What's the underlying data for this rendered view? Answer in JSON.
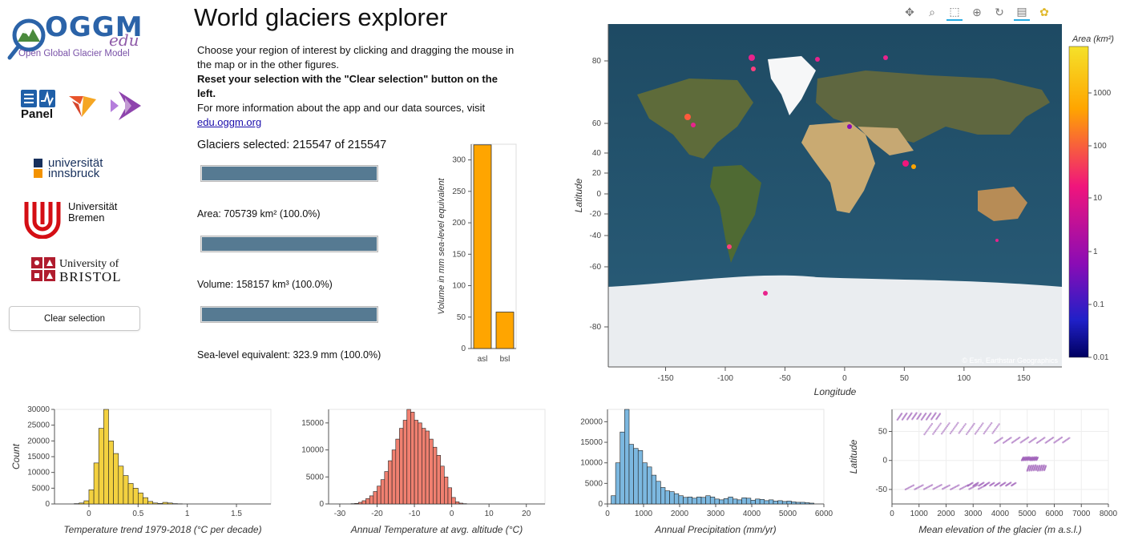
{
  "app": {
    "title": "World glaciers explorer",
    "intro_line1": "Choose your region of interest by clicking and dragging the mouse in the map or in the other figures.",
    "intro_bold": "Reset your selection with the \"Clear selection\" button on the left.",
    "intro_line3": "For more information about the app and our data sources, visit",
    "link": "edu.oggm.org"
  },
  "logos": {
    "oggm_main": "OGGM",
    "oggm_edu": "edu",
    "oggm_sub": "Open Global Glacier Model",
    "panel": "Panel",
    "innsbruck_1": "universität",
    "innsbruck_2": "innsbruck",
    "bremen_1": "Universität",
    "bremen_2": "Bremen",
    "bristol_1": "University of",
    "bristol_2": "BRISTOL"
  },
  "controls": {
    "clear_label": "Clear selection"
  },
  "stats": {
    "glaciers": "Glaciers selected: 215547 of 215547",
    "area": "Area: 705739 km² (100.0%)",
    "volume": "Volume: 158157 km³ (100.0%)",
    "sle": "Sea-level equivalent: 323.9 mm (100.0%)",
    "glaciers_fraction": 1.0,
    "area_fraction": 1.0,
    "volume_fraction": 1.0
  },
  "volume_chart": {
    "chart_data": {
      "type": "bar",
      "categories": [
        "asl",
        "bsl"
      ],
      "values": [
        324,
        58
      ],
      "ylabel": "Volume in mm sea-level equivalent",
      "ylim": [
        0,
        325
      ],
      "yticks": [
        "0",
        "50",
        "100",
        "150",
        "200",
        "250",
        "300"
      ],
      "color": "#ffa500"
    }
  },
  "map": {
    "xlabel": "Longitude",
    "ylabel": "Latitude",
    "xticks": [
      "-150",
      "-100",
      "-50",
      "0",
      "50",
      "100",
      "150"
    ],
    "yticks": [
      "80",
      "60",
      "40",
      "20",
      "0",
      "-20",
      "-40",
      "-60",
      "-80"
    ],
    "attribution": "© Esri, Earthstar Geographics",
    "colorbar_title": "Area (km²)",
    "colorbar_ticks": [
      "1000",
      "100",
      "10",
      "1",
      "0.1",
      "0.01"
    ]
  },
  "toolbar": [
    "pan-icon",
    "zoom-icon",
    "box-select-icon",
    "wheel-zoom-icon",
    "reset-icon",
    "hover-icon",
    "bokeh-logo-icon"
  ],
  "histograms": [
    {
      "type": "bar",
      "xlabel": "Temperature trend 1979-2018 (°C per decade)",
      "ylabel": "Count",
      "color": "#f3d140",
      "xticks": [
        "0",
        "0.5",
        "1",
        "1.5"
      ],
      "yticks": [
        "0",
        "5000",
        "10000",
        "15000",
        "20000",
        "25000",
        "30000"
      ],
      "ylim": [
        0,
        30000
      ],
      "xlim": [
        -0.35,
        1.85
      ],
      "bin_start": -0.15,
      "bin_width": 0.05,
      "values": [
        100,
        300,
        1000,
        4500,
        13000,
        24000,
        30000,
        20000,
        16000,
        12000,
        9000,
        6500,
        5000,
        3500,
        2000,
        800,
        300,
        150,
        500,
        300,
        100,
        50
      ]
    },
    {
      "type": "bar",
      "xlabel": "Annual Temperature at avg. altitude (°C)",
      "ylabel": "",
      "color": "#f08070",
      "xticks": [
        "-30",
        "-20",
        "-10",
        "0",
        "10",
        "20"
      ],
      "yticks": [
        "0",
        "5000",
        "10000",
        "15000"
      ],
      "ylim": [
        0,
        17500
      ],
      "xlim": [
        -33,
        25
      ],
      "bin_start": -27,
      "bin_width": 1,
      "values": [
        50,
        100,
        300,
        600,
        1000,
        1500,
        2300,
        3300,
        4500,
        6000,
        8000,
        10000,
        12000,
        14000,
        15500,
        17500,
        17000,
        15500,
        15000,
        14000,
        13500,
        12000,
        10500,
        9000,
        7000,
        5000,
        3000,
        1200,
        400,
        150,
        50
      ]
    },
    {
      "type": "bar",
      "xlabel": "Annual Precipitation (mm/yr)",
      "ylabel": "",
      "color": "#7cb8e0",
      "xticks": [
        "0",
        "1000",
        "2000",
        "3000",
        "4000",
        "5000",
        "6000"
      ],
      "yticks": [
        "0",
        "5000",
        "10000",
        "15000",
        "20000"
      ],
      "ylim": [
        0,
        23000
      ],
      "xlim": [
        0,
        6000
      ],
      "bin_start": 100,
      "bin_width": 125,
      "values": [
        2000,
        10000,
        17500,
        23000,
        14500,
        13500,
        13000,
        10000,
        9000,
        7000,
        5500,
        4000,
        3200,
        3000,
        2500,
        2000,
        1600,
        1700,
        1400,
        1700,
        1600,
        2000,
        1700,
        1200,
        1000,
        1300,
        1700,
        1200,
        1000,
        1500,
        1400,
        900,
        1200,
        1100,
        800,
        1000,
        700,
        800,
        600,
        700,
        500,
        400,
        400,
        300,
        200
      ]
    },
    {
      "type": "scatter",
      "xlabel": "Mean elevation of the glacier (m a.s.l.)",
      "ylabel": "Latitude",
      "color": "#9b59b6",
      "xticks": [
        "0",
        "1000",
        "2000",
        "3000",
        "4000",
        "5000",
        "6000",
        "7000",
        "8000"
      ],
      "yticks": [
        "50",
        "0",
        "-50"
      ],
      "ylim": [
        -75,
        88
      ],
      "xlim": [
        0,
        8000
      ]
    }
  ]
}
